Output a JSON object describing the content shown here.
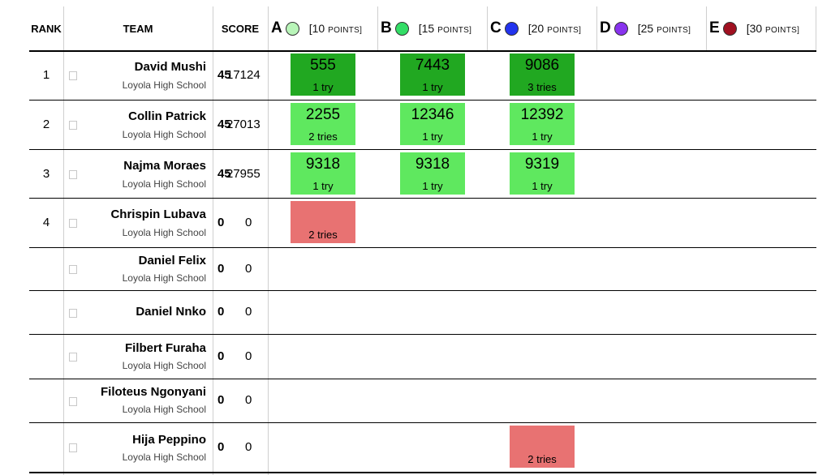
{
  "header": {
    "rank": "RANK",
    "team": "TEAM",
    "score": "SCORE",
    "problems": [
      {
        "letter": "A",
        "color": "#b9f5b9",
        "points_num": "[10",
        "points_word": "POINTS]"
      },
      {
        "letter": "B",
        "color": "#33dd66",
        "points_num": "[15",
        "points_word": "POINTS]"
      },
      {
        "letter": "C",
        "color": "#2233ee",
        "points_num": "[20",
        "points_word": "POINTS]"
      },
      {
        "letter": "D",
        "color": "#8833ee",
        "points_num": "[25",
        "points_word": "POINTS]"
      },
      {
        "letter": "E",
        "color": "#a01020",
        "points_num": "[30",
        "points_word": "POINTS]"
      }
    ]
  },
  "rows": [
    {
      "rank": "1",
      "name": "David Mushi",
      "school": "Loyola High School",
      "solved": "45",
      "penalty": "17124",
      "cells": {
        "A": {
          "status": "first",
          "time": "555",
          "tries": "1 try"
        },
        "B": {
          "status": "first",
          "time": "7443",
          "tries": "1 try"
        },
        "C": {
          "status": "first",
          "time": "9086",
          "tries": "3 tries"
        }
      }
    },
    {
      "rank": "2",
      "name": "Collin Patrick",
      "school": "Loyola High School",
      "solved": "45",
      "penalty": "27013",
      "cells": {
        "A": {
          "status": "correct",
          "time": "2255",
          "tries": "2 tries"
        },
        "B": {
          "status": "correct",
          "time": "12346",
          "tries": "1 try"
        },
        "C": {
          "status": "correct",
          "time": "12392",
          "tries": "1 try"
        }
      }
    },
    {
      "rank": "3",
      "name": "Najma Moraes",
      "school": "Loyola High School",
      "solved": "45",
      "penalty": "27955",
      "cells": {
        "A": {
          "status": "correct",
          "time": "9318",
          "tries": "1 try"
        },
        "B": {
          "status": "correct",
          "time": "9318",
          "tries": "1 try"
        },
        "C": {
          "status": "correct",
          "time": "9319",
          "tries": "1 try"
        }
      }
    },
    {
      "rank": "4",
      "name": "Chrispin Lubava",
      "school": "Loyola High School",
      "solved": "0",
      "penalty": "0",
      "cells": {
        "A": {
          "status": "wrong",
          "time": "",
          "tries": "2 tries"
        }
      }
    },
    {
      "rank": "",
      "name": "Daniel Felix",
      "school": "Loyola High School",
      "solved": "0",
      "penalty": "0",
      "cells": {}
    },
    {
      "rank": "",
      "name": "Daniel Nnko",
      "school": "",
      "solved": "0",
      "penalty": "0",
      "cells": {}
    },
    {
      "rank": "",
      "name": "Filbert Furaha",
      "school": "Loyola High School",
      "solved": "0",
      "penalty": "0",
      "cells": {}
    },
    {
      "rank": "",
      "name": "Filoteus Ngonyani",
      "school": "Loyola High School",
      "solved": "0",
      "penalty": "0",
      "cells": {}
    },
    {
      "rank": "",
      "name": "Hija Peppino",
      "school": "Loyola High School",
      "solved": "0",
      "penalty": "0",
      "cells": {
        "C": {
          "status": "wrong",
          "time": "",
          "tries": "2 tries"
        }
      }
    }
  ]
}
